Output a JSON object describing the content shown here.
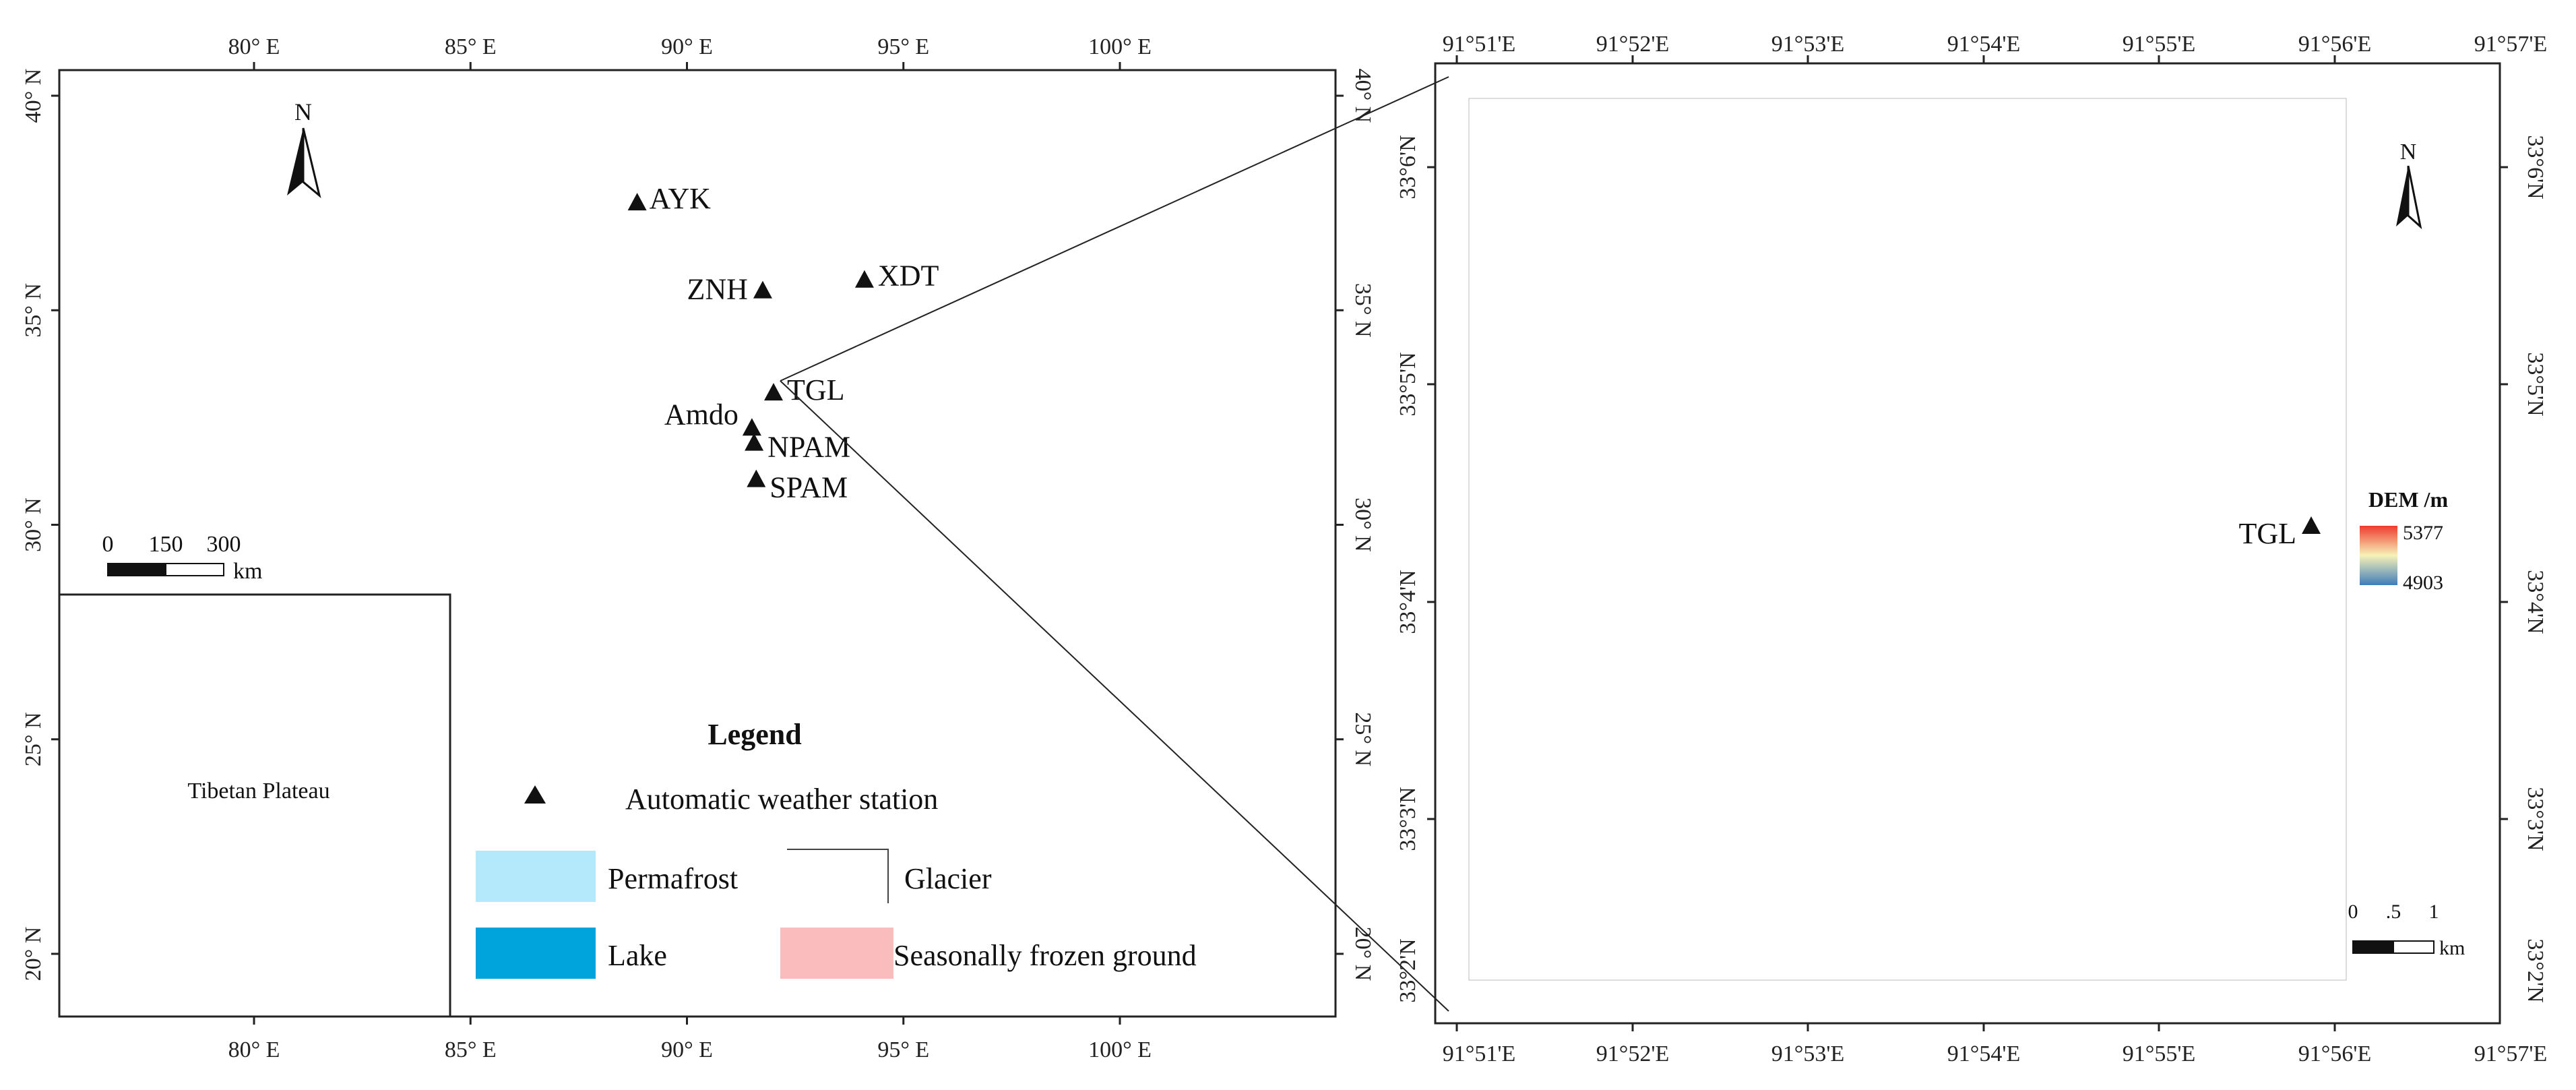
{
  "left_map": {
    "lon_ticks": [
      "80° E",
      "85° E",
      "90° E",
      "95° E",
      "100° E"
    ],
    "lat_ticks": [
      "40° N",
      "35° N",
      "30° N",
      "25° N",
      "20° N"
    ],
    "stations": [
      {
        "label": "AYK",
        "lon": 88.85,
        "lat": 37.5
      },
      {
        "label": "ZNH",
        "lon": 91.75,
        "lat": 35.45
      },
      {
        "label": "XDT",
        "lon": 94.1,
        "lat": 35.7
      },
      {
        "label": "TGL",
        "lon": 92.0,
        "lat": 33.07
      },
      {
        "label": "Amdo",
        "lon": 91.5,
        "lat": 32.25
      },
      {
        "label": "NPAM",
        "lon": 91.55,
        "lat": 31.9
      },
      {
        "label": "SPAM",
        "lon": 91.6,
        "lat": 31.05
      }
    ],
    "north_arrow": "N",
    "scale_bar": {
      "labels": [
        "0",
        "150",
        "300"
      ],
      "unit": "km"
    },
    "inset_label": "Tibetan Plateau"
  },
  "legend": {
    "title": "Legend",
    "items": [
      {
        "key": "station",
        "label": "Automatic weather station"
      },
      {
        "key": "permafrost",
        "label": "Permafrost",
        "color": "#b3e9fb"
      },
      {
        "key": "glacier",
        "label": "Glacier"
      },
      {
        "key": "lake",
        "label": "Lake",
        "color": "#00a4dd"
      },
      {
        "key": "seasonal",
        "label": "Seasonally frozen ground",
        "color": "#fbbcbe"
      }
    ]
  },
  "right_map": {
    "lon_ticks": [
      "91°51'E",
      "91°52'E",
      "91°53'E",
      "91°54'E",
      "91°55'E",
      "91°56'E",
      "91°57'E"
    ],
    "lat_ticks": [
      "33°6'N",
      "33°5'N",
      "33°4'N",
      "33°3'N",
      "33°2'N"
    ],
    "station": {
      "label": "TGL"
    },
    "north_arrow": "N",
    "dem_legend": {
      "title": "DEM /m",
      "max": "5377",
      "min": "4903",
      "colors": [
        "#ee3b2f",
        "#f7f2b8",
        "#3e7cbb"
      ]
    },
    "scale_bar": {
      "labels": [
        "0",
        ".5",
        "1"
      ],
      "unit": "km"
    }
  }
}
